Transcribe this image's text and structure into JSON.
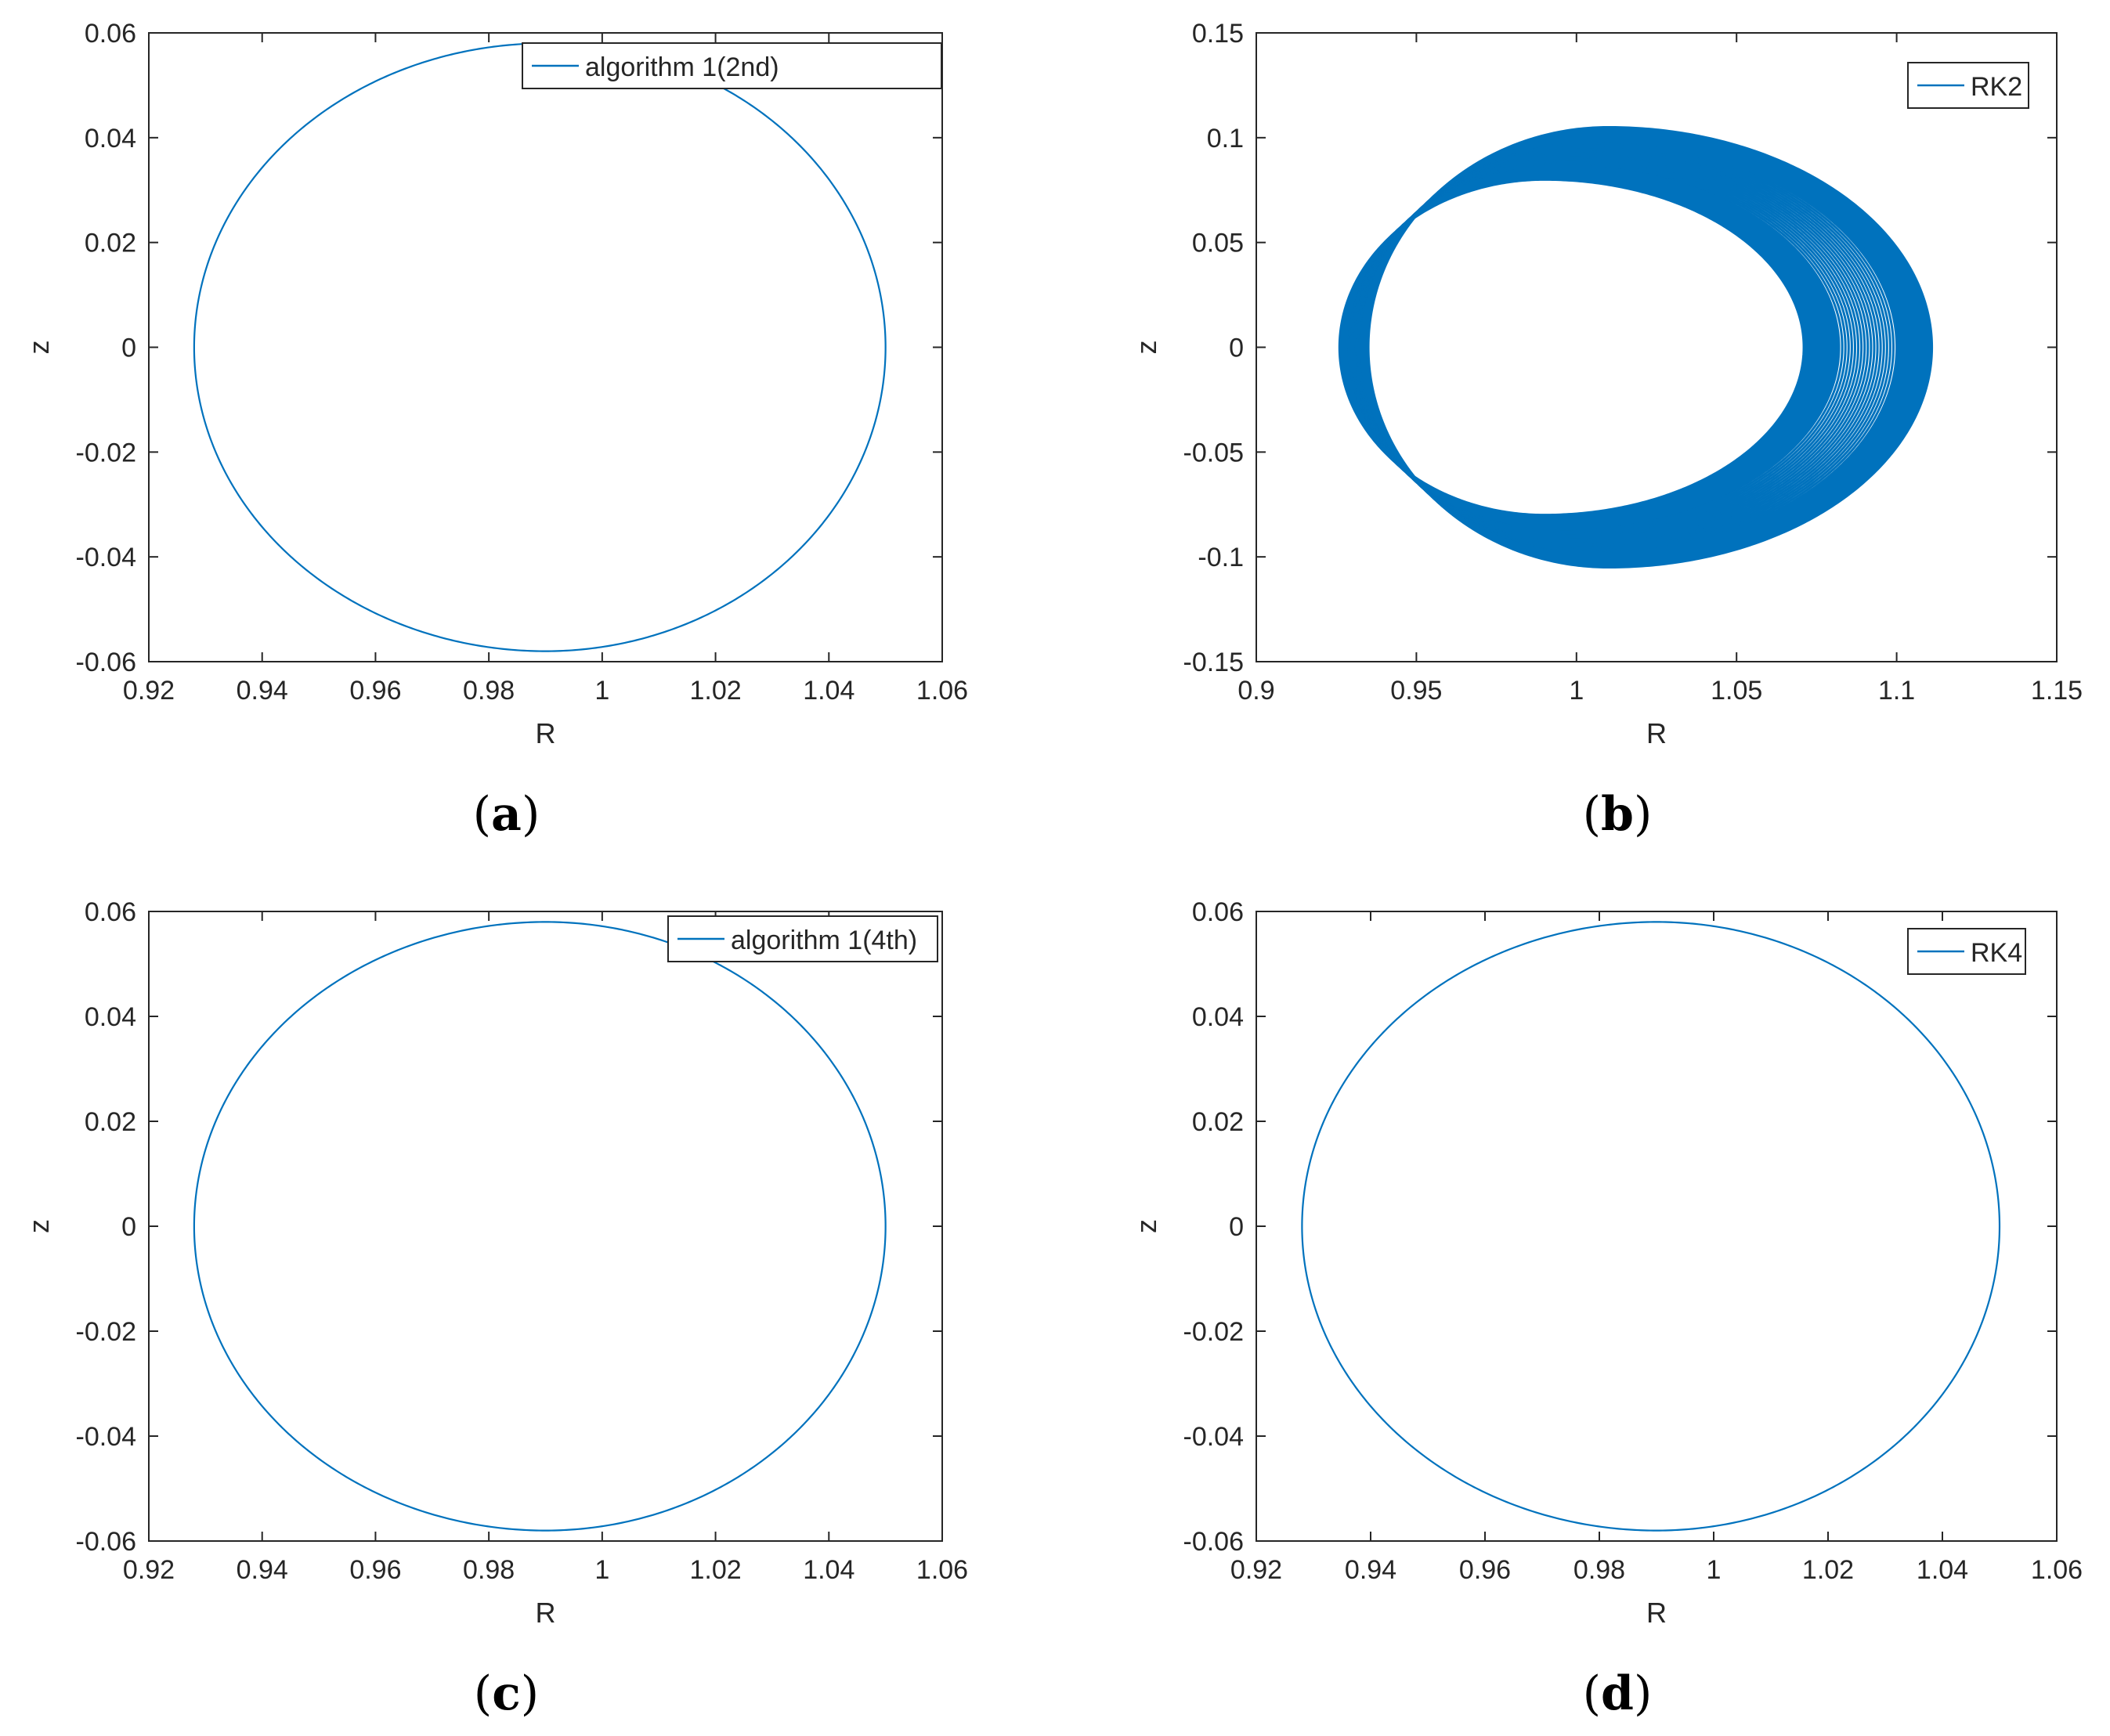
{
  "chart_data": [
    {
      "panel": "(a)",
      "type": "line",
      "xlabel": "R",
      "ylabel": "z",
      "xlim": [
        0.92,
        1.06
      ],
      "ylim": [
        -0.06,
        0.06
      ],
      "xticks": [
        "0.92",
        "0.94",
        "0.96",
        "0.98",
        "1",
        "1.02",
        "1.04",
        "1.06"
      ],
      "yticks": [
        "-0.06",
        "-0.04",
        "-0.02",
        "0",
        "0.02",
        "0.04",
        "0.06"
      ],
      "legend_position": "top-right",
      "series": [
        {
          "name": "algorithm 1(2nd)",
          "color": "#0072BD",
          "shape": "closed-orbit",
          "r_min": 0.928,
          "r_max": 1.05,
          "z_max": 0.058,
          "r_at_z_max": 0.99,
          "bands": 1
        }
      ]
    },
    {
      "panel": "(b)",
      "type": "line",
      "xlabel": "R",
      "ylabel": "z",
      "xlim": [
        0.9,
        1.15
      ],
      "ylim": [
        -0.15,
        0.15
      ],
      "xticks": [
        "0.9",
        "0.95",
        "1",
        "1.05",
        "1.1",
        "1.15"
      ],
      "yticks": [
        "-0.15",
        "-0.1",
        "-0.05",
        "0",
        "0.05",
        "0.1",
        "0.15"
      ],
      "legend_position": "top-right",
      "series": [
        {
          "name": "RK2",
          "color": "#0072BD",
          "shape": "drifting-orbit",
          "inner_r_min": 0.926,
          "inner_r_max": 1.071,
          "inner_z_max": 0.08,
          "inner_r_at_z_max": 0.99,
          "outer_r_min": 0.935,
          "outer_r_max": 1.111,
          "outer_z_max": 0.105,
          "outer_r_at_z_max": 1.01,
          "bands": 40
        }
      ]
    },
    {
      "panel": "(c)",
      "type": "line",
      "xlabel": "R",
      "ylabel": "z",
      "xlim": [
        0.92,
        1.06
      ],
      "ylim": [
        -0.06,
        0.06
      ],
      "xticks": [
        "0.92",
        "0.94",
        "0.96",
        "0.98",
        "1",
        "1.02",
        "1.04",
        "1.06"
      ],
      "yticks": [
        "-0.06",
        "-0.04",
        "-0.02",
        "0",
        "0.02",
        "0.04",
        "0.06"
      ],
      "legend_position": "top-right",
      "series": [
        {
          "name": "algorithm 1(4th)",
          "color": "#0072BD",
          "shape": "closed-orbit",
          "r_min": 0.928,
          "r_max": 1.05,
          "z_max": 0.058,
          "r_at_z_max": 0.99,
          "bands": 1
        }
      ]
    },
    {
      "panel": "(d)",
      "type": "line",
      "xlabel": "R",
      "ylabel": "z",
      "xlim": [
        0.92,
        1.06
      ],
      "ylim": [
        -0.06,
        0.06
      ],
      "xticks": [
        "0.92",
        "0.94",
        "0.96",
        "0.98",
        "1",
        "1.02",
        "1.04",
        "1.06"
      ],
      "yticks": [
        "-0.06",
        "-0.04",
        "-0.02",
        "0",
        "0.02",
        "0.04",
        "0.06"
      ],
      "legend_position": "top-right",
      "series": [
        {
          "name": "RK4",
          "color": "#0072BD",
          "shape": "closed-orbit",
          "r_min": 0.928,
          "r_max": 1.05,
          "z_max": 0.058,
          "r_at_z_max": 0.99,
          "bands": 1
        }
      ]
    }
  ]
}
